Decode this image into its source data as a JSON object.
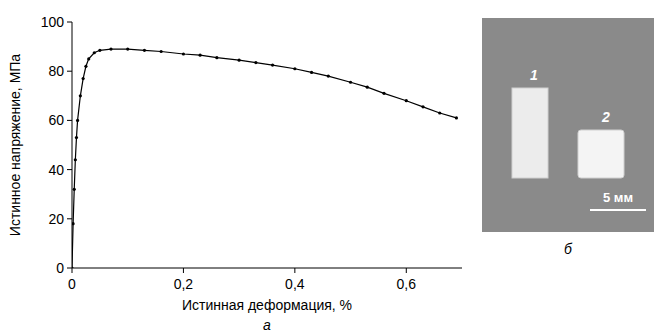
{
  "chart_data": {
    "type": "line",
    "x_label": "Истинная деформация, %",
    "y_label": "Истинное напряжение, МПа",
    "annotations": [
      "а"
    ],
    "x": [
      0,
      0.002,
      0.004,
      0.006,
      0.008,
      0.01,
      0.015,
      0.02,
      0.025,
      0.03,
      0.04,
      0.05,
      0.07,
      0.1,
      0.13,
      0.16,
      0.2,
      0.23,
      0.26,
      0.3,
      0.33,
      0.36,
      0.4,
      0.43,
      0.46,
      0.5,
      0.53,
      0.56,
      0.6,
      0.63,
      0.66,
      0.69
    ],
    "values": [
      0,
      18,
      32,
      44,
      53,
      60,
      70,
      77,
      82,
      85,
      87.5,
      88.5,
      89,
      89,
      88.5,
      88,
      87,
      86.5,
      85.5,
      84.5,
      83.5,
      82.5,
      81,
      79.5,
      78,
      75.5,
      73.5,
      71,
      68,
      65.5,
      63,
      61
    ],
    "color": "#000000",
    "marker": "circle",
    "line_style": "solid",
    "grid": false,
    "xlim": [
      0,
      0.7
    ],
    "xticks": [
      0,
      {
        "value": 0.2,
        "label": "0,2"
      },
      {
        "value": 0.4,
        "label": "0,4"
      },
      {
        "value": 0.6,
        "label": "0,6"
      }
    ],
    "ylim": [
      0,
      100
    ],
    "yticks": [
      0,
      20,
      40,
      60,
      80,
      100
    ]
  },
  "photo": {
    "panel_label": "б",
    "specimens": [
      "1",
      "2"
    ],
    "scale_bar": "5 мм"
  }
}
